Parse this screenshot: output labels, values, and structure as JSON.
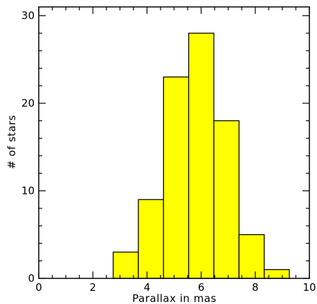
{
  "chart_data": {
    "type": "bar",
    "style": "histogram",
    "xlabel": "Parallax in mas",
    "ylabel": "# of stars",
    "xlim": [
      0,
      10
    ],
    "ylim": [
      0,
      31
    ],
    "xticks": [
      0,
      2,
      4,
      6,
      8,
      10
    ],
    "yticks": [
      0,
      10,
      20,
      30
    ],
    "x_minor_step": 0.5,
    "y_minor_step": 2,
    "bins": [
      {
        "x0": 2.75,
        "x1": 3.68,
        "count": 3
      },
      {
        "x0": 3.68,
        "x1": 4.61,
        "count": 9
      },
      {
        "x0": 4.61,
        "x1": 5.54,
        "count": 23
      },
      {
        "x0": 5.54,
        "x1": 6.47,
        "count": 28
      },
      {
        "x0": 6.47,
        "x1": 7.4,
        "count": 18
      },
      {
        "x0": 7.4,
        "x1": 8.33,
        "count": 5
      },
      {
        "x0": 8.33,
        "x1": 9.26,
        "count": 1
      }
    ],
    "bar_fill": "#ffff00",
    "bar_stroke": "#000000",
    "grid": false
  }
}
